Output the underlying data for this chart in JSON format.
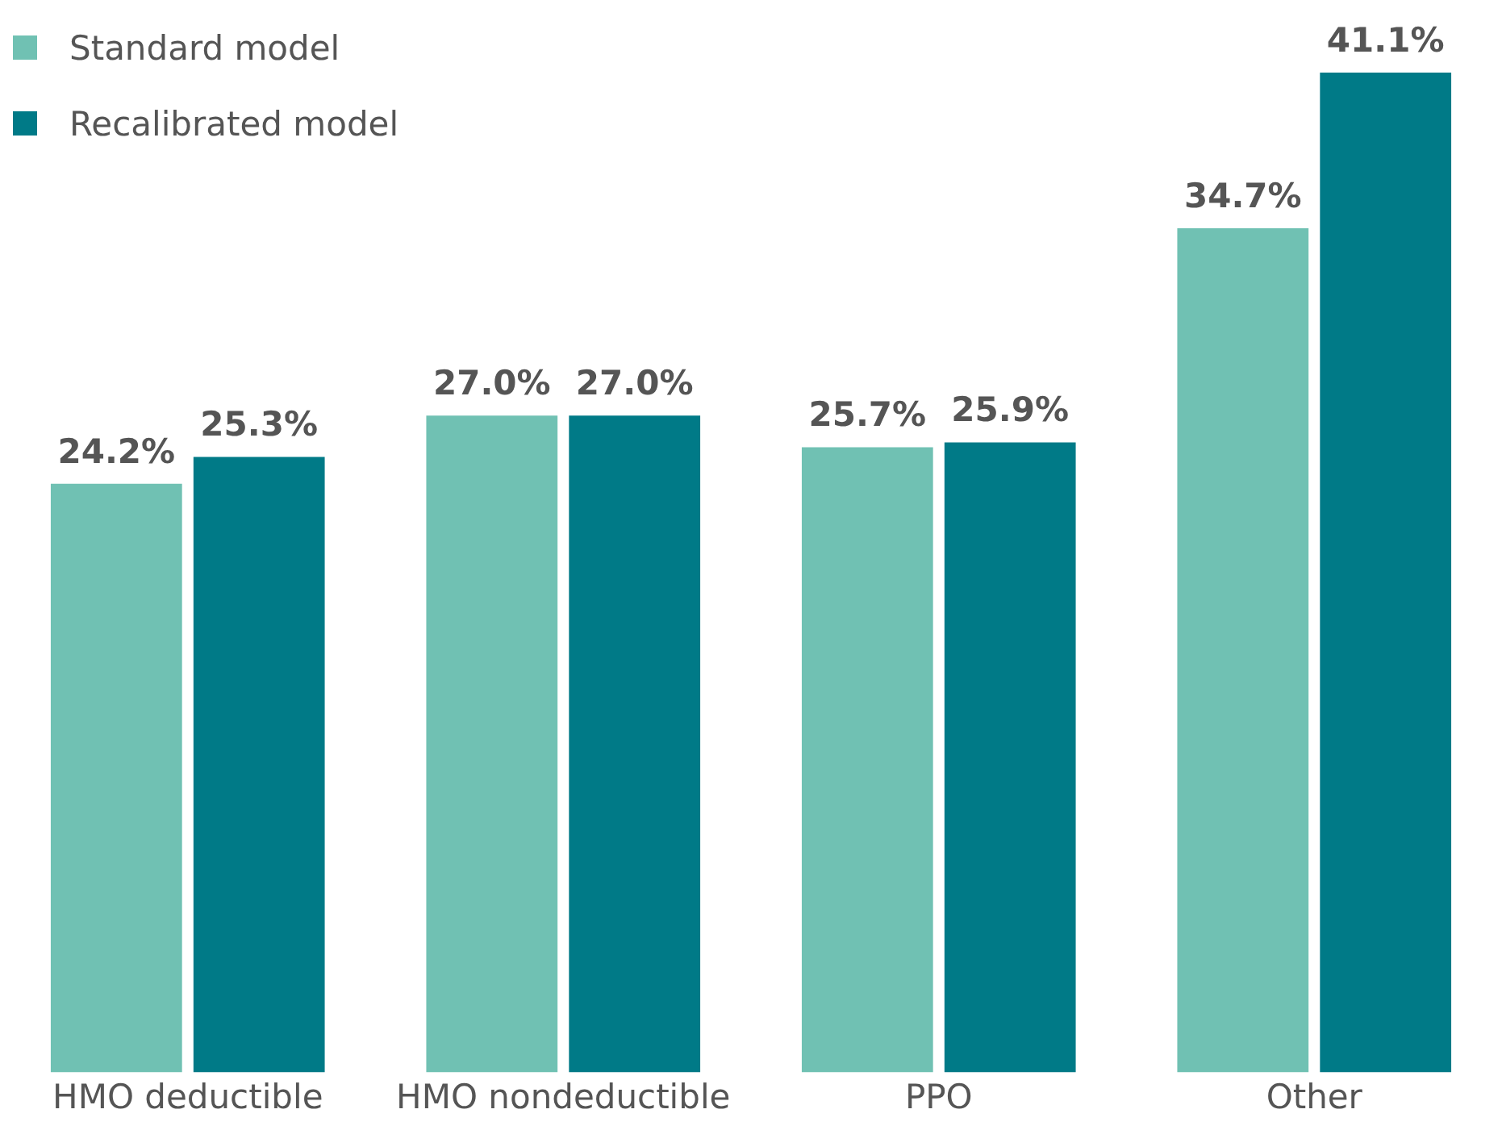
{
  "chart_data": {
    "type": "bar",
    "categories": [
      "HMO deductible",
      "HMO nondeductible",
      "PPO",
      "Other"
    ],
    "series": [
      {
        "name": "Standard model",
        "color": "#70c1b3",
        "values": [
          24.2,
          27.0,
          25.7,
          34.7
        ],
        "value_labels": [
          "24.2%",
          "27.0%",
          "25.7%",
          "34.7%"
        ]
      },
      {
        "name": "Recalibrated model",
        "color": "#007a87",
        "values": [
          25.3,
          27.0,
          25.9,
          41.1
        ],
        "value_labels": [
          "25.3%",
          "27.0%",
          "25.9%",
          "41.1%"
        ]
      }
    ],
    "ylim": [
      0,
      41.1
    ],
    "tick_labels": "x",
    "grid": false,
    "legend": "top left"
  }
}
